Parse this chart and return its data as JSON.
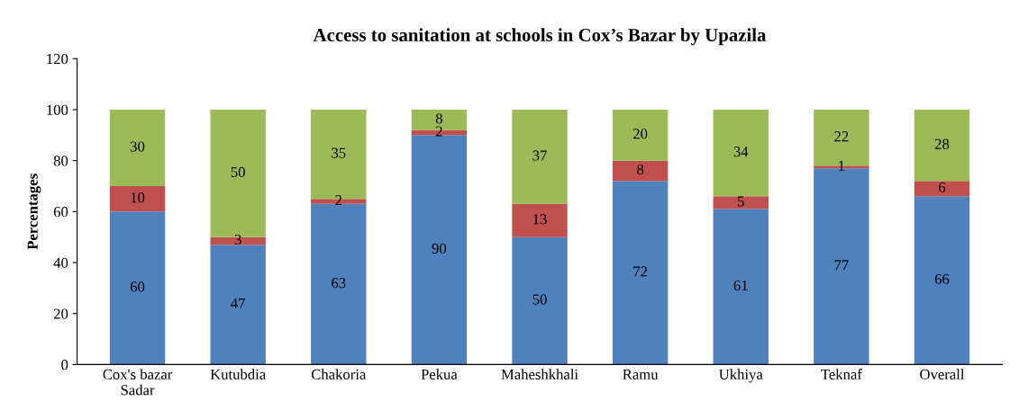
{
  "chart_data": {
    "type": "bar",
    "title": "Access to sanitation at schools in Cox’s Bazar by Upazila",
    "ylabel": "Percentages",
    "categories": [
      "Cox's bazar\nSadar",
      "Kutubdia",
      "Chakoria",
      "Pekua",
      "Maheshkhali",
      "Ramu",
      "Ukhiya",
      "Teknaf",
      "Overall"
    ],
    "stacked": true,
    "data_labels": true,
    "grid": false,
    "legend": false,
    "ylim": [
      0,
      120
    ],
    "yticks": [
      0,
      20,
      40,
      60,
      80,
      100,
      120
    ],
    "series": [
      {
        "color": "#4f81bd",
        "values": [
          60,
          47,
          63,
          90,
          50,
          72,
          61,
          77,
          66
        ]
      },
      {
        "color": "#c0504d",
        "values": [
          10,
          3,
          2,
          2,
          13,
          8,
          5,
          1,
          6
        ]
      },
      {
        "color": "#9bbb59",
        "values": [
          30,
          50,
          35,
          8,
          37,
          20,
          34,
          22,
          28
        ]
      }
    ]
  }
}
